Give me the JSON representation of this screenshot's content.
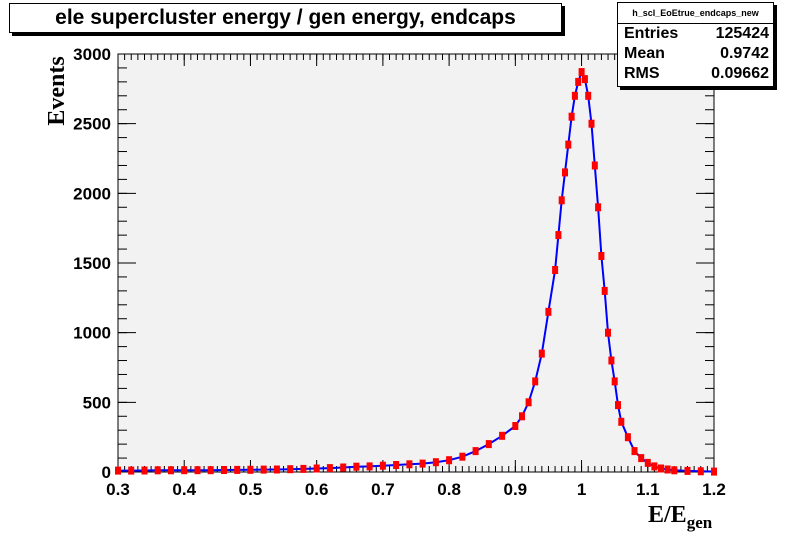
{
  "chart_data": {
    "type": "histogram",
    "title": "ele supercluster energy / gen energy, endcaps",
    "xlabel_main": "E/E",
    "xlabel_sub": "gen",
    "ylabel": "Events",
    "xlim": [
      0.3,
      1.2
    ],
    "ylim": [
      0,
      3000
    ],
    "xticks": [
      0.3,
      0.4,
      0.5,
      0.6,
      0.7,
      0.8,
      0.9,
      1,
      1.1,
      1.2
    ],
    "xtick_labels": [
      "0.3",
      "0.4",
      "0.5",
      "0.6",
      "0.7",
      "0.8",
      "0.9",
      "1",
      "1.1",
      "1.2"
    ],
    "yticks": [
      0,
      500,
      1000,
      1500,
      2000,
      2500,
      3000
    ],
    "ytick_labels": [
      "0",
      "500",
      "1000",
      "1500",
      "2000",
      "2500",
      "3000"
    ],
    "series": [
      {
        "line_color": "#0000ff",
        "marker_color": "#ff0000",
        "x": [
          0.3,
          0.32,
          0.34,
          0.36,
          0.38,
          0.4,
          0.42,
          0.44,
          0.46,
          0.48,
          0.5,
          0.52,
          0.54,
          0.56,
          0.58,
          0.6,
          0.62,
          0.64,
          0.66,
          0.68,
          0.7,
          0.72,
          0.74,
          0.76,
          0.78,
          0.8,
          0.82,
          0.84,
          0.86,
          0.88,
          0.9,
          0.91,
          0.92,
          0.93,
          0.94,
          0.95,
          0.96,
          0.965,
          0.97,
          0.975,
          0.98,
          0.985,
          0.99,
          0.995,
          1.0,
          1.005,
          1.01,
          1.015,
          1.02,
          1.025,
          1.03,
          1.035,
          1.04,
          1.045,
          1.05,
          1.055,
          1.06,
          1.07,
          1.08,
          1.09,
          1.1,
          1.11,
          1.12,
          1.13,
          1.14,
          1.16,
          1.18,
          1.2
        ],
        "y": [
          10,
          10,
          11,
          12,
          12,
          13,
          13,
          13,
          14,
          15,
          16,
          17,
          18,
          20,
          22,
          25,
          28,
          32,
          38,
          40,
          45,
          50,
          55,
          60,
          70,
          85,
          110,
          150,
          200,
          260,
          330,
          400,
          500,
          650,
          850,
          1150,
          1450,
          1700,
          1950,
          2150,
          2350,
          2550,
          2700,
          2800,
          2870,
          2820,
          2700,
          2500,
          2200,
          1900,
          1550,
          1300,
          1000,
          800,
          650,
          480,
          360,
          250,
          150,
          100,
          65,
          40,
          25,
          18,
          12,
          8,
          5,
          3
        ]
      }
    ]
  },
  "stats": {
    "name": "h_scl_EoEtrue_endcaps_new",
    "rows": [
      {
        "label": "Entries",
        "value": "125424"
      },
      {
        "label": "Mean",
        "value": "0.9742"
      },
      {
        "label": "RMS",
        "value": "0.09662"
      }
    ]
  }
}
